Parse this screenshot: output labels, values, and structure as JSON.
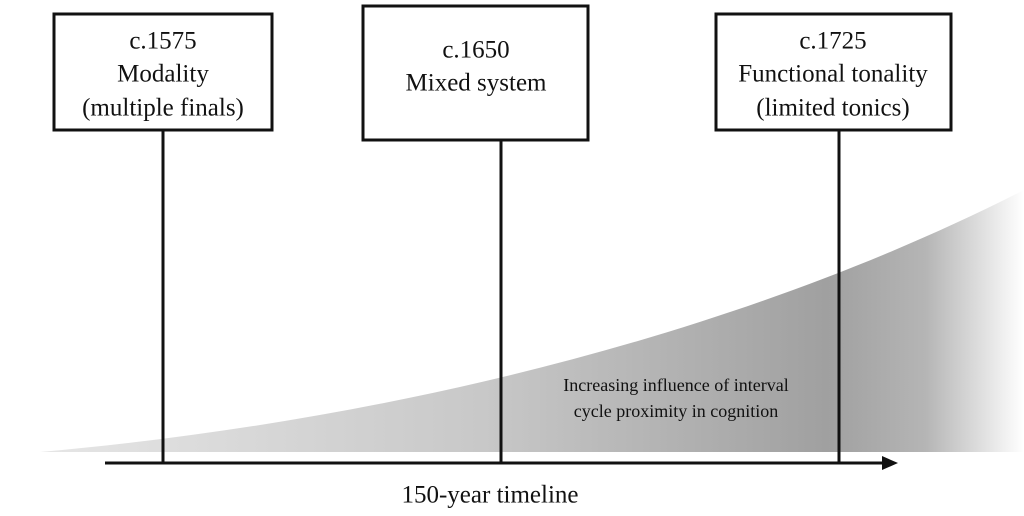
{
  "nodes": [
    {
      "lines": [
        "c.1575",
        "Modality",
        "(multiple finals)"
      ]
    },
    {
      "lines": [
        "c.1650",
        "Mixed system"
      ]
    },
    {
      "lines": [
        "c.1725",
        "Functional tonality",
        "(limited tonics)"
      ]
    }
  ],
  "annotation": {
    "lines": [
      "Increasing influence of interval",
      "cycle proximity in cognition"
    ]
  },
  "axis_label": "150-year timeline"
}
